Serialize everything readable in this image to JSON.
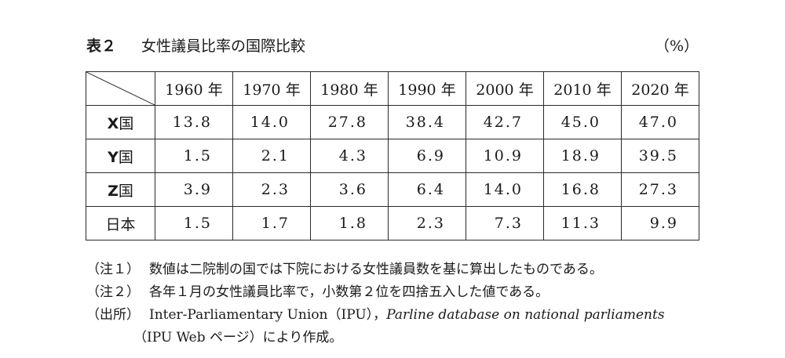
{
  "title": {
    "label": "表２",
    "text": "女性議員比率の国際比較",
    "unit": "（%）"
  },
  "table": {
    "columns": [
      "1960 年",
      "1970 年",
      "1980 年",
      "1990 年",
      "2000 年",
      "2010 年",
      "2020 年"
    ],
    "rows": [
      {
        "letter": "X",
        "suffix": "国",
        "values": [
          "13.8",
          "14.0",
          "27.8",
          "38.4",
          "42.7",
          "45.0",
          "47.0"
        ]
      },
      {
        "letter": "Y",
        "suffix": "国",
        "values": [
          "1.5",
          "2.1",
          "4.3",
          "6.9",
          "10.9",
          "18.9",
          "39.5"
        ]
      },
      {
        "letter": "Z",
        "suffix": "国",
        "values": [
          "3.9",
          "2.3",
          "3.6",
          "6.4",
          "14.0",
          "16.8",
          "27.3"
        ]
      },
      {
        "letter": "",
        "suffix": "日本",
        "values": [
          "1.5",
          "1.7",
          "1.8",
          "2.3",
          "7.3",
          "11.3",
          "9.9"
        ]
      }
    ]
  },
  "notes": {
    "note1_label": "（注１）",
    "note1_text": "数値は二院制の国では下院における女性議員数を基に算出したものである。",
    "note2_label": "（注２）",
    "note2_text": "各年１月の女性議員比率で，小数第２位を四捨五入した値である。",
    "source_label": "（出所）",
    "source_text_a": "Inter-Parliamentary Union（IPU），",
    "source_text_b": "Parline database on national parliaments",
    "source_text_c": "（IPU Web ページ）により作成。"
  }
}
